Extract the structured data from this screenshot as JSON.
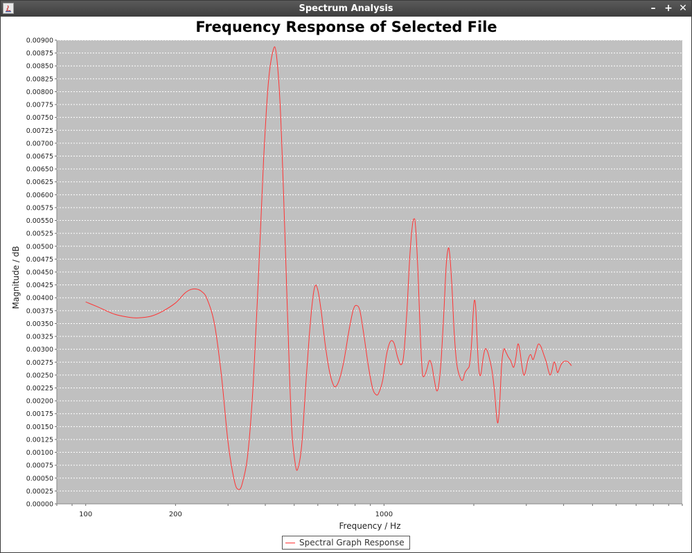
{
  "window": {
    "title": "Spectrum Analysis",
    "minimize_label": "–",
    "maximize_label": "+",
    "close_label": "✕"
  },
  "chart_data": {
    "type": "line",
    "title": "Frequency Response of Selected File",
    "xlabel": "Frequency / Hz",
    "ylabel": "Magnitude / dB",
    "x_scale": "log",
    "xlim": [
      80,
      10000
    ],
    "ylim": [
      0,
      0.009
    ],
    "x_ticks": [
      {
        "value": 100,
        "label": "100"
      },
      {
        "value": 200,
        "label": "200"
      },
      {
        "value": 1000,
        "label": "1000"
      }
    ],
    "y_ticks": [
      "0.00000",
      "0.00025",
      "0.00050",
      "0.00075",
      "0.00100",
      "0.00125",
      "0.00150",
      "0.00175",
      "0.00200",
      "0.00225",
      "0.00250",
      "0.00275",
      "0.00300",
      "0.00325",
      "0.00350",
      "0.00375",
      "0.00400",
      "0.00425",
      "0.00450",
      "0.00475",
      "0.00500",
      "0.00525",
      "0.00550",
      "0.00575",
      "0.00600",
      "0.00625",
      "0.00650",
      "0.00675",
      "0.00700",
      "0.00725",
      "0.00750",
      "0.00775",
      "0.00800",
      "0.00825",
      "0.00850",
      "0.00875",
      "0.00900"
    ],
    "grid": true,
    "legend_position": "bottom-center",
    "series": [
      {
        "name": "Spectral Graph Response",
        "color": "#ff3333",
        "points": [
          [
            100,
            0.00392
          ],
          [
            110,
            0.00382
          ],
          [
            125,
            0.00368
          ],
          [
            140,
            0.00362
          ],
          [
            150,
            0.00361
          ],
          [
            165,
            0.00364
          ],
          [
            180,
            0.00373
          ],
          [
            200,
            0.0039
          ],
          [
            215,
            0.00409
          ],
          [
            225,
            0.00416
          ],
          [
            235,
            0.00417
          ],
          [
            245,
            0.00412
          ],
          [
            255,
            0.00398
          ],
          [
            270,
            0.0035
          ],
          [
            285,
            0.0025
          ],
          [
            300,
            0.0012
          ],
          [
            315,
            0.00045
          ],
          [
            325,
            0.00028
          ],
          [
            335,
            0.0004
          ],
          [
            350,
            0.001
          ],
          [
            365,
            0.0024
          ],
          [
            380,
            0.0045
          ],
          [
            395,
            0.0067
          ],
          [
            410,
            0.0082
          ],
          [
            425,
            0.0088
          ],
          [
            435,
            0.00875
          ],
          [
            448,
            0.0078
          ],
          [
            462,
            0.0058
          ],
          [
            476,
            0.0035
          ],
          [
            490,
            0.0015
          ],
          [
            505,
            0.00075
          ],
          [
            515,
            0.0007
          ],
          [
            530,
            0.00115
          ],
          [
            548,
            0.0024
          ],
          [
            568,
            0.0036
          ],
          [
            585,
            0.0042
          ],
          [
            600,
            0.00415
          ],
          [
            617,
            0.0037
          ],
          [
            635,
            0.0031
          ],
          [
            655,
            0.0026
          ],
          [
            675,
            0.00232
          ],
          [
            690,
            0.00228
          ],
          [
            710,
            0.00243
          ],
          [
            735,
            0.0028
          ],
          [
            765,
            0.0034
          ],
          [
            790,
            0.00378
          ],
          [
            810,
            0.00385
          ],
          [
            830,
            0.00375
          ],
          [
            855,
            0.0033
          ],
          [
            885,
            0.0027
          ],
          [
            915,
            0.00225
          ],
          [
            940,
            0.00212
          ],
          [
            960,
            0.00215
          ],
          [
            990,
            0.0024
          ],
          [
            1020,
            0.0029
          ],
          [
            1050,
            0.00315
          ],
          [
            1080,
            0.00312
          ],
          [
            1110,
            0.00285
          ],
          [
            1140,
            0.0027
          ],
          [
            1165,
            0.0029
          ],
          [
            1195,
            0.0038
          ],
          [
            1220,
            0.0048
          ],
          [
            1245,
            0.0054
          ],
          [
            1260,
            0.00553
          ],
          [
            1275,
            0.0054
          ],
          [
            1300,
            0.0045
          ],
          [
            1325,
            0.0032
          ],
          [
            1345,
            0.00255
          ],
          [
            1365,
            0.00248
          ],
          [
            1390,
            0.0026
          ],
          [
            1420,
            0.00278
          ],
          [
            1445,
            0.0027
          ],
          [
            1470,
            0.00245
          ],
          [
            1500,
            0.0022
          ],
          [
            1525,
            0.0023
          ],
          [
            1555,
            0.0028
          ],
          [
            1590,
            0.0038
          ],
          [
            1615,
            0.0046
          ],
          [
            1640,
            0.00495
          ],
          [
            1660,
            0.00485
          ],
          [
            1690,
            0.0042
          ],
          [
            1720,
            0.0033
          ],
          [
            1755,
            0.0027
          ],
          [
            1800,
            0.00245
          ],
          [
            1835,
            0.0024
          ],
          [
            1870,
            0.00255
          ],
          [
            1905,
            0.00262
          ],
          [
            1935,
            0.0027
          ],
          [
            1965,
            0.0031
          ],
          [
            1990,
            0.0037
          ],
          [
            2010,
            0.00395
          ],
          [
            2030,
            0.0038
          ],
          [
            2055,
            0.0031
          ],
          [
            2080,
            0.0026
          ],
          [
            2110,
            0.0025
          ],
          [
            2145,
            0.0028
          ],
          [
            2180,
            0.003
          ],
          [
            2215,
            0.00298
          ],
          [
            2250,
            0.00285
          ],
          [
            2300,
            0.0026
          ],
          [
            2345,
            0.0022
          ],
          [
            2385,
            0.0017
          ],
          [
            2410,
            0.00158
          ],
          [
            2440,
            0.0019
          ],
          [
            2480,
            0.0027
          ],
          [
            2520,
            0.003
          ],
          [
            2560,
            0.00295
          ],
          [
            2610,
            0.00285
          ],
          [
            2660,
            0.00278
          ],
          [
            2720,
            0.00265
          ],
          [
            2770,
            0.00285
          ],
          [
            2810,
            0.0031
          ],
          [
            2850,
            0.003
          ],
          [
            2895,
            0.0027
          ],
          [
            2940,
            0.0025
          ],
          [
            2985,
            0.00258
          ],
          [
            3040,
            0.0028
          ],
          [
            3100,
            0.0029
          ],
          [
            3160,
            0.0028
          ],
          [
            3225,
            0.00295
          ],
          [
            3290,
            0.0031
          ],
          [
            3360,
            0.00305
          ],
          [
            3430,
            0.0029
          ],
          [
            3500,
            0.00275
          ],
          [
            3560,
            0.00258
          ],
          [
            3610,
            0.0025
          ],
          [
            3660,
            0.0026
          ],
          [
            3710,
            0.00275
          ],
          [
            3760,
            0.0027
          ],
          [
            3815,
            0.00255
          ],
          [
            3870,
            0.00262
          ],
          [
            3920,
            0.0027
          ],
          [
            3980,
            0.00275
          ],
          [
            4050,
            0.00277
          ],
          [
            4130,
            0.00276
          ],
          [
            4200,
            0.00272
          ],
          [
            4250,
            0.00268
          ]
        ]
      }
    ]
  },
  "legend": {
    "label": "Spectral Graph Response"
  }
}
